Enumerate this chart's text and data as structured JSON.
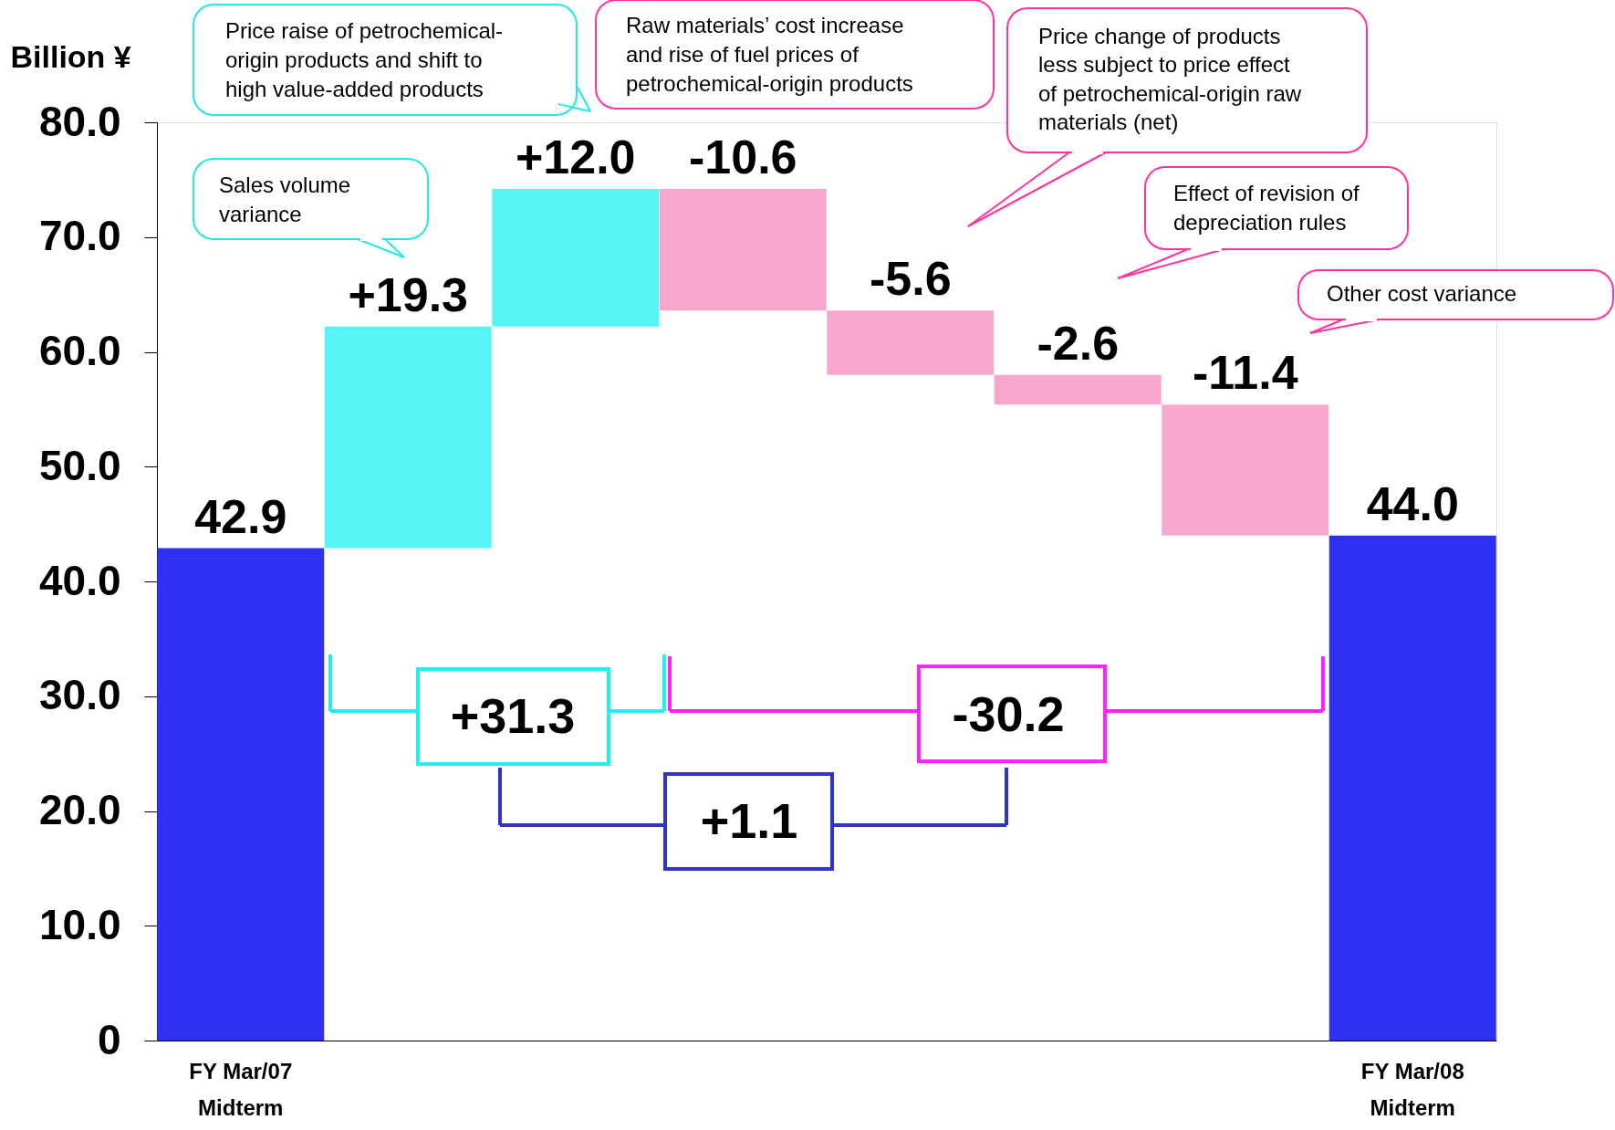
{
  "chart_data": {
    "type": "bar",
    "ylabel": "Billion ¥",
    "categories": [
      "FY Mar/07 Midterm",
      null,
      null,
      null,
      null,
      null,
      null,
      "FY Mar/08 Midterm"
    ],
    "values": [
      42.9,
      19.3,
      12.0,
      -10.6,
      -5.6,
      -2.6,
      -11.4,
      44.0
    ],
    "base": [
      0,
      42.9,
      62.2,
      74.2,
      63.6,
      58.0,
      55.4,
      0
    ],
    "colors": [
      "#3030f0",
      "#55f5f5",
      "#55f5f5",
      "#f7a8cc",
      "#f7a8cc",
      "#f7a8cc",
      "#f7a8cc",
      "#3030f0"
    ],
    "value_labels": [
      "42.9",
      "+19.3",
      "+12.0",
      "-10.6",
      "-5.6",
      "-2.6",
      "-11.4",
      "44.0"
    ],
    "ylim": [
      0,
      80
    ],
    "yticks": [
      0,
      {
        "value": 10,
        "label": "10.0"
      },
      {
        "value": 20,
        "label": "20.0"
      },
      {
        "value": 30,
        "label": "30.0"
      },
      {
        "value": 40,
        "label": "40.0"
      },
      {
        "value": 50,
        "label": "50.0"
      },
      {
        "value": 60,
        "label": "60.0"
      },
      {
        "value": 70,
        "label": "70.0"
      },
      {
        "value": 80,
        "label": "80.0"
      }
    ],
    "grid": false,
    "annotations": [
      "Sales volume variance",
      "Price raise of petrochemical-origin products and shift to high value-added products",
      "Raw materials’ cost increase and rise of fuel prices of petrochemical-origin products",
      "Price change of products less subject to price effect of petrochemical-origin raw materials (net)",
      "Effect of revision of depreciation rules",
      "Other cost variance",
      "+31.3",
      "-30.2",
      "+1.1"
    ]
  }
}
